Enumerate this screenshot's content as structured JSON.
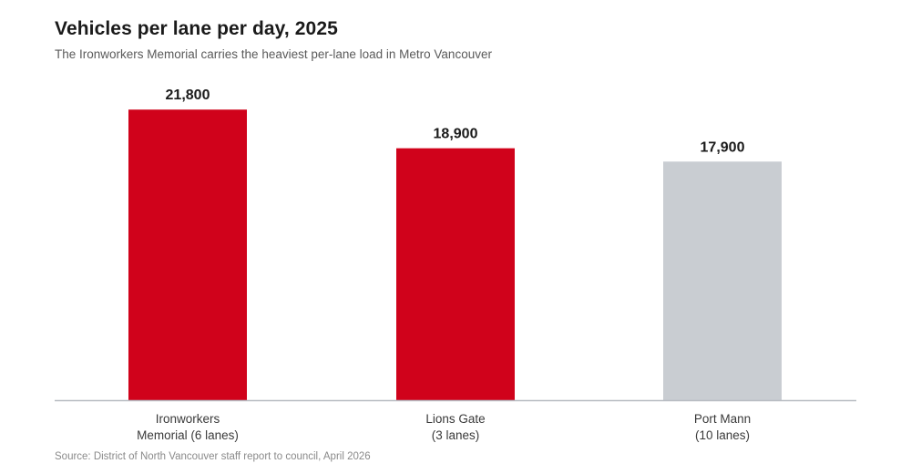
{
  "chart_data": {
    "type": "bar",
    "title": "Vehicles per lane per day, 2025",
    "subtitle": "The Ironworkers Memorial carries the heaviest per-lane load in Metro Vancouver",
    "source": "Source: District of North Vancouver staff report to council, April 2026",
    "categories": [
      [
        "Ironworkers",
        "Memorial (6 lanes)"
      ],
      [
        "Lions Gate",
        "(3 lanes)"
      ],
      [
        "Port Mann",
        "(10 lanes)"
      ]
    ],
    "values": [
      21800,
      18900,
      17900
    ],
    "value_labels": [
      "21,800",
      "18,900",
      "17,900"
    ],
    "bar_colors": [
      "#d0021b",
      "#d0021b",
      "#c9cdd2"
    ],
    "ylim": [
      0,
      22500
    ],
    "grid": false,
    "legend": "none",
    "xlabel": "",
    "ylabel": ""
  }
}
